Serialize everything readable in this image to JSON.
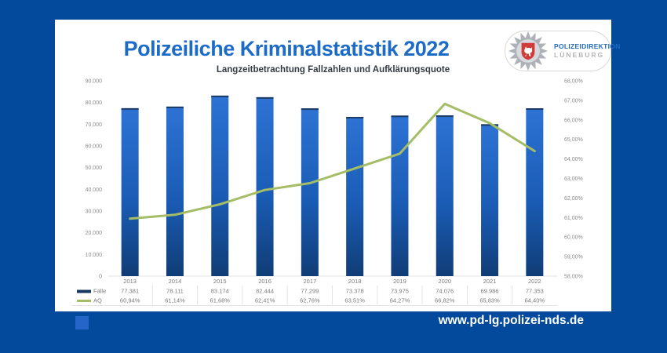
{
  "report": {
    "title": "Polizeiliche Kriminalstatistik 2022",
    "subtitle": "Langzeitbetrachtung Fallzahlen und Aufklärungsquote"
  },
  "logo": {
    "org": "POLIZEIDIREKTION",
    "city": "LÜNEBURG"
  },
  "footer": {
    "url": "www.pd-lg.polizei-nds.de"
  },
  "colors": {
    "background": "#03499c",
    "accent_square": "#2565c9",
    "title_blue": "#1c6bc7",
    "bar_top": "#2e73d4",
    "bar_bottom": "#103d76",
    "bar_cap": "#1b3a66",
    "line_green": "#a4bd66",
    "legend_cases_swatch": "#17375e",
    "axis_text": "#8c8c8c",
    "table_text": "#7a7a7a",
    "shield_red": "#cf3c39"
  },
  "chart_data": {
    "type": "bar+line combo",
    "title": "Polizeiliche Kriminalstatistik 2022",
    "subtitle": "Langzeitbetrachtung Fallzahlen und Aufklärungsquote",
    "grid": false,
    "legend_position": "bottom-left data table",
    "categories": [
      "2013",
      "2014",
      "2015",
      "2016",
      "2017",
      "2018",
      "2019",
      "2020",
      "2021",
      "2022"
    ],
    "series": [
      {
        "name": "Fälle",
        "type": "bar",
        "axis": "left",
        "values": [
          77381,
          78111,
          83174,
          82444,
          77299,
          73378,
          73975,
          74076,
          69986,
          77353
        ],
        "labels": [
          "77.381",
          "78.111",
          "83.174",
          "82.444",
          "77.299",
          "73.378",
          "73.975",
          "74.076",
          "69.986",
          "77.353"
        ]
      },
      {
        "name": "AQ",
        "type": "line",
        "axis": "right",
        "values": [
          60.94,
          61.14,
          61.68,
          62.41,
          62.76,
          63.51,
          64.27,
          66.82,
          65.83,
          64.4
        ],
        "labels": [
          "60,94%",
          "61,14%",
          "61,68%",
          "62,41%",
          "62,76%",
          "63,51%",
          "64,27%",
          "66,82%",
          "65,83%",
          "64,40%"
        ]
      }
    ],
    "left_axis": {
      "min": 0,
      "max": 90000,
      "step": 10000,
      "tick_labels": [
        "0",
        "10.000",
        "20.000",
        "30.000",
        "40.000",
        "50.000",
        "60.000",
        "70.000",
        "80.000",
        "90.000"
      ]
    },
    "right_axis": {
      "min": 58,
      "max": 68,
      "step": 1,
      "tick_labels": [
        "58,00%",
        "59,00%",
        "60,00%",
        "61,00%",
        "62,00%",
        "63,00%",
        "64,00%",
        "65,00%",
        "66,00%",
        "67,00%",
        "68,00%"
      ]
    }
  }
}
